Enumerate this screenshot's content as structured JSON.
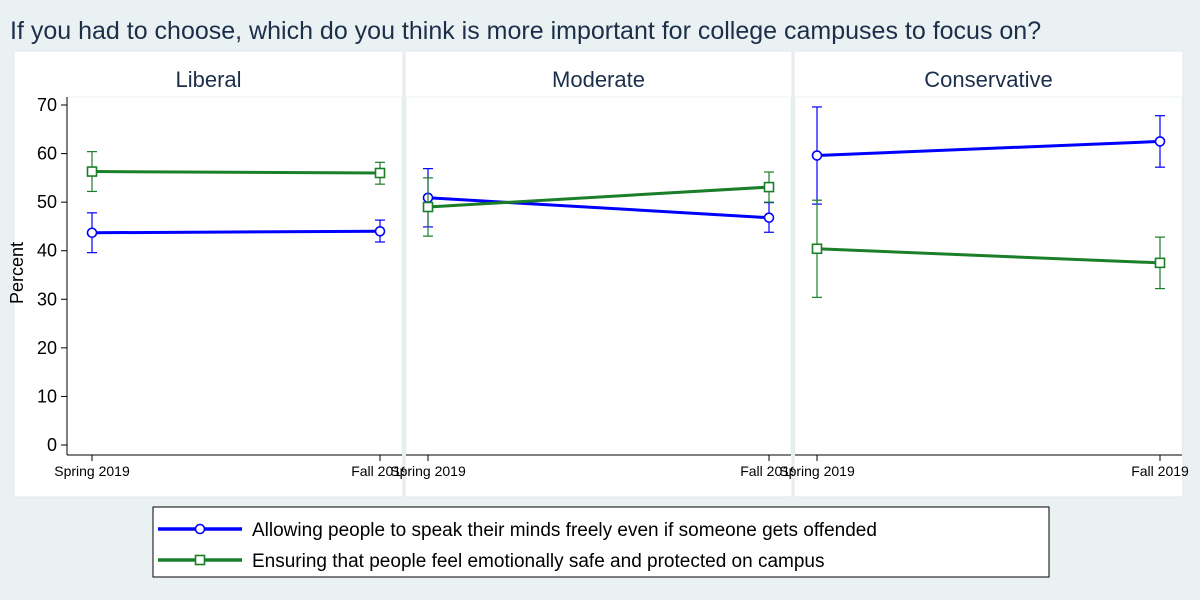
{
  "chart_data": {
    "type": "line",
    "title": "If you had to choose, which do you think is more important for college campuses to focus on?",
    "ylabel": "Percent",
    "ylim": [
      0,
      70
    ],
    "yticks": [
      0,
      10,
      20,
      30,
      40,
      50,
      60,
      70
    ],
    "categories": [
      "Spring 2019",
      "Fall 2019"
    ],
    "legend_position": "bottom",
    "panels": [
      {
        "title": "Liberal",
        "series": [
          {
            "values": [
              43.7,
              44.0
            ],
            "ci_low": [
              39.6,
              41.8
            ],
            "ci_high": [
              47.8,
              46.3
            ]
          },
          {
            "values": [
              56.3,
              56.0
            ],
            "ci_low": [
              52.2,
              53.7
            ],
            "ci_high": [
              60.4,
              58.2
            ]
          }
        ]
      },
      {
        "title": "Moderate",
        "series": [
          {
            "values": [
              50.9,
              46.8
            ],
            "ci_low": [
              44.9,
              43.8
            ],
            "ci_high": [
              56.9,
              49.9
            ]
          },
          {
            "values": [
              49.0,
              53.1
            ],
            "ci_low": [
              43.0,
              50.0
            ],
            "ci_high": [
              55.0,
              56.2
            ]
          }
        ]
      },
      {
        "title": "Conservative",
        "series": [
          {
            "values": [
              59.6,
              62.5
            ],
            "ci_low": [
              49.6,
              57.2
            ],
            "ci_high": [
              69.6,
              67.8
            ]
          },
          {
            "values": [
              40.4,
              37.5
            ],
            "ci_low": [
              30.4,
              32.2
            ],
            "ci_high": [
              50.4,
              42.8
            ]
          }
        ]
      }
    ],
    "legend": [
      {
        "label": "Allowing people to speak their minds freely even if someone gets offended",
        "color": "#0000ff",
        "marker": "circle"
      },
      {
        "label": "Ensuring that people feel emotionally safe and protected on campus",
        "color": "#1a7f28",
        "marker": "square"
      }
    ]
  }
}
